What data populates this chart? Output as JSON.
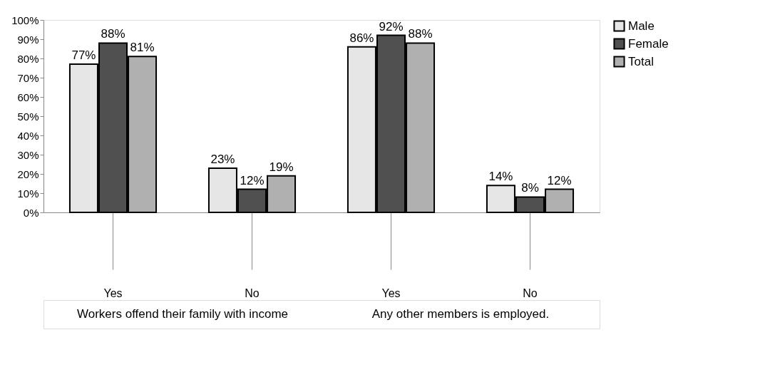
{
  "chart_data": {
    "type": "bar",
    "categories": [
      "Yes",
      "No",
      "Yes",
      "No"
    ],
    "series": [
      {
        "name": "Male",
        "color": "#e6e6e6",
        "values": [
          77,
          23,
          86,
          14
        ],
        "value_labels": [
          "77%",
          "23%",
          "86%",
          "14%"
        ]
      },
      {
        "name": "Female",
        "color": "#505050",
        "values": [
          88,
          12,
          92,
          8
        ],
        "value_labels": [
          "88%",
          "12%",
          "92%",
          "8%"
        ]
      },
      {
        "name": "Total",
        "color": "#b0b0b0",
        "values": [
          81,
          19,
          88,
          12
        ],
        "value_labels": [
          "81%",
          "19%",
          "88%",
          "12%"
        ]
      }
    ],
    "ylim": [
      0,
      100
    ],
    "yticks": [
      {
        "value": 0,
        "label": "0%"
      },
      {
        "value": 10,
        "label": "10%"
      },
      {
        "value": 20,
        "label": "20%"
      },
      {
        "value": 30,
        "label": "30%"
      },
      {
        "value": 40,
        "label": "40%"
      },
      {
        "value": 50,
        "label": "50%"
      },
      {
        "value": 60,
        "label": "60%"
      },
      {
        "value": 70,
        "label": "70%"
      },
      {
        "value": 80,
        "label": "80%"
      },
      {
        "value": 90,
        "label": "90%"
      },
      {
        "value": 100,
        "label": "100%"
      }
    ],
    "annotations": [
      "Workers offend their family with income",
      "Any other members is employed."
    ],
    "legend": "right",
    "grid": false
  }
}
